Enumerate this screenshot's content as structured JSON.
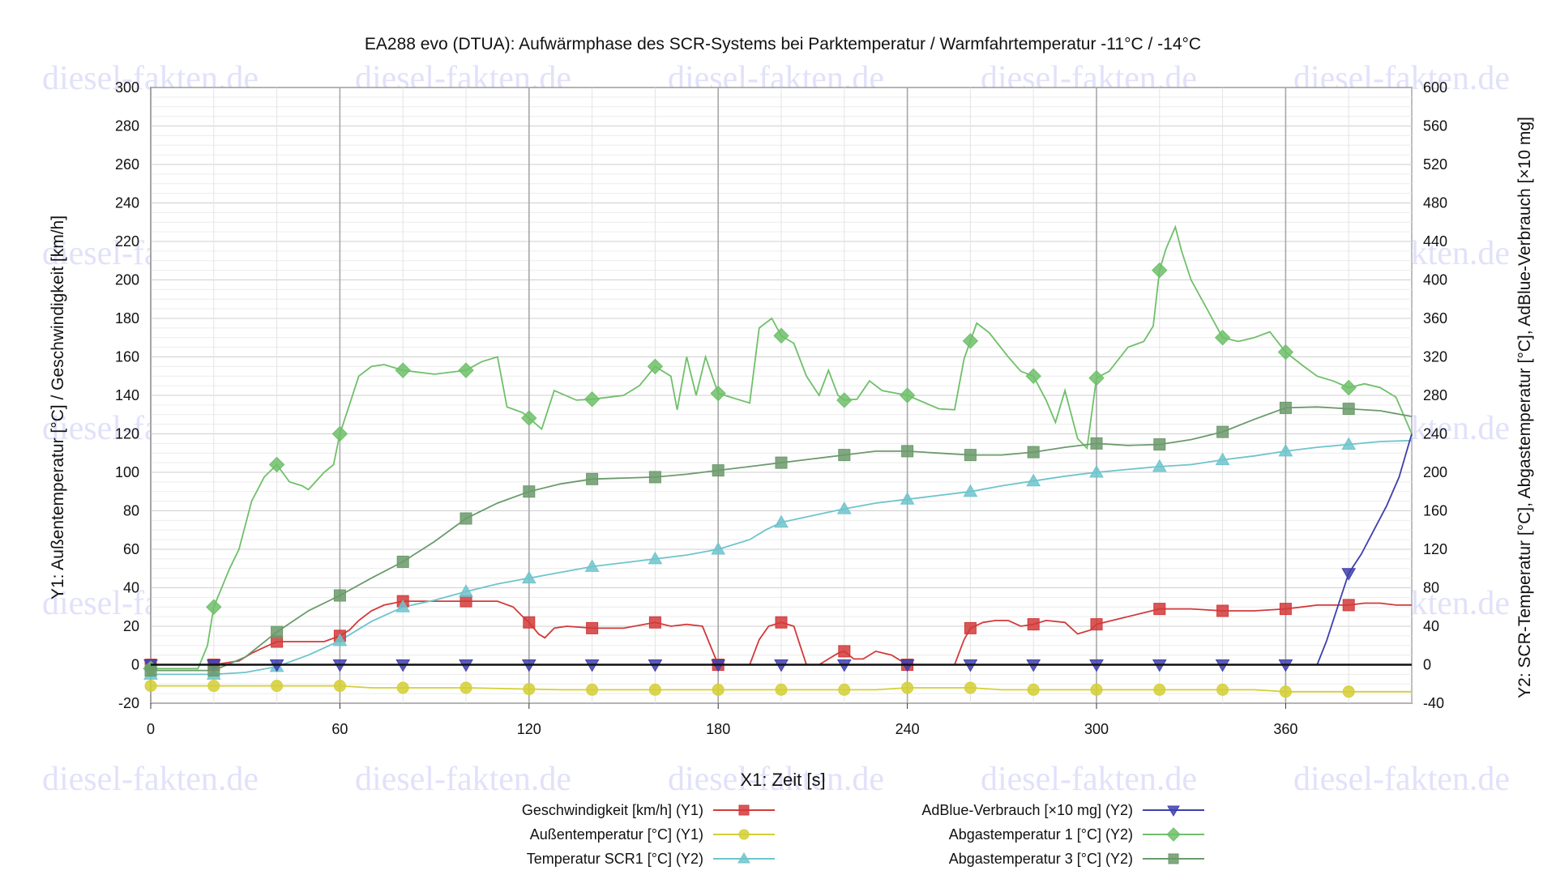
{
  "watermark": "diesel-fakten.de",
  "chart_data": {
    "type": "line",
    "title": "EA288 evo (DTUA): Aufwärmphase des SCR-Systems bei Parktemperatur / Warmfahrtemperatur -11°C / -14°C",
    "xlabel": "X1: Zeit [s]",
    "y1label": "Y1: Außentemperatur [°C] / Geschwindigkeit [km/h]",
    "y2label": "Y2: SCR-Temperatur [°C], Abgastemperatur [°C], AdBlue-Verbrauch [×10 mg]",
    "xlim": [
      0,
      400
    ],
    "y1lim": [
      -20,
      300
    ],
    "y2lim": [
      -40,
      600
    ],
    "xticks": [
      0,
      60,
      120,
      180,
      240,
      300,
      360
    ],
    "y1ticks": [
      -20,
      0,
      20,
      40,
      60,
      80,
      100,
      120,
      140,
      160,
      180,
      200,
      220,
      240,
      260,
      280,
      300
    ],
    "y2ticks": [
      -40,
      0,
      40,
      80,
      120,
      160,
      200,
      240,
      280,
      320,
      360,
      400,
      440,
      480,
      520,
      560,
      600
    ],
    "grid": true,
    "legend_position": "bottom",
    "series": [
      {
        "name": "Geschwindigkeit [km/h] (Y1)",
        "axis": "y1",
        "color": "#d23a3a",
        "marker": "square",
        "points": [
          [
            0,
            0
          ],
          [
            20,
            0
          ],
          [
            28,
            2
          ],
          [
            32,
            6
          ],
          [
            36,
            9
          ],
          [
            40,
            12
          ],
          [
            45,
            12
          ],
          [
            50,
            12
          ],
          [
            55,
            12
          ],
          [
            60,
            15
          ],
          [
            63,
            18
          ],
          [
            66,
            23
          ],
          [
            70,
            28
          ],
          [
            74,
            31
          ],
          [
            80,
            33
          ],
          [
            90,
            33
          ],
          [
            100,
            33
          ],
          [
            110,
            33
          ],
          [
            115,
            30
          ],
          [
            118,
            25
          ],
          [
            120,
            22
          ],
          [
            123,
            16
          ],
          [
            125,
            14
          ],
          [
            128,
            19
          ],
          [
            132,
            20
          ],
          [
            140,
            19
          ],
          [
            150,
            19
          ],
          [
            160,
            22
          ],
          [
            165,
            20
          ],
          [
            170,
            21
          ],
          [
            175,
            20
          ],
          [
            178,
            8
          ],
          [
            180,
            0
          ],
          [
            185,
            0
          ],
          [
            190,
            0
          ],
          [
            193,
            13
          ],
          [
            196,
            20
          ],
          [
            200,
            22
          ],
          [
            204,
            20
          ],
          [
            206,
            10
          ],
          [
            208,
            0
          ],
          [
            212,
            0
          ],
          [
            215,
            3
          ],
          [
            218,
            6
          ],
          [
            220,
            7
          ],
          [
            223,
            3
          ],
          [
            226,
            3
          ],
          [
            230,
            7
          ],
          [
            235,
            5
          ],
          [
            240,
            0
          ],
          [
            250,
            0
          ],
          [
            255,
            0
          ],
          [
            258,
            13
          ],
          [
            260,
            19
          ],
          [
            264,
            22
          ],
          [
            268,
            23
          ],
          [
            272,
            23
          ],
          [
            276,
            20
          ],
          [
            280,
            21
          ],
          [
            284,
            23
          ],
          [
            290,
            22
          ],
          [
            294,
            16
          ],
          [
            298,
            18
          ],
          [
            300,
            21
          ],
          [
            305,
            23
          ],
          [
            310,
            25
          ],
          [
            315,
            27
          ],
          [
            320,
            29
          ],
          [
            330,
            29
          ],
          [
            340,
            28
          ],
          [
            350,
            28
          ],
          [
            360,
            29
          ],
          [
            365,
            30
          ],
          [
            370,
            31
          ],
          [
            380,
            31
          ],
          [
            385,
            32
          ],
          [
            390,
            32
          ],
          [
            395,
            31
          ],
          [
            400,
            31
          ]
        ],
        "marker_x": [
          0,
          20,
          40,
          60,
          80,
          100,
          120,
          140,
          160,
          180,
          200,
          220,
          240,
          260,
          280,
          300,
          320,
          340,
          360,
          380
        ]
      },
      {
        "name": "Außentemperatur [°C] (Y1)",
        "axis": "y1",
        "color": "#d4cf35",
        "marker": "circle",
        "points": [
          [
            0,
            -11
          ],
          [
            40,
            -11
          ],
          [
            60,
            -11
          ],
          [
            70,
            -12
          ],
          [
            100,
            -12
          ],
          [
            130,
            -13
          ],
          [
            180,
            -13
          ],
          [
            230,
            -13
          ],
          [
            240,
            -12
          ],
          [
            260,
            -12
          ],
          [
            270,
            -13
          ],
          [
            350,
            -13
          ],
          [
            360,
            -14
          ],
          [
            400,
            -14
          ]
        ],
        "marker_x": [
          0,
          20,
          40,
          60,
          80,
          100,
          120,
          140,
          160,
          180,
          200,
          220,
          240,
          260,
          280,
          300,
          320,
          340,
          360,
          380
        ]
      },
      {
        "name": "Temperatur SCR1 [°C] (Y2)",
        "axis": "y2",
        "color": "#6ec4cc",
        "marker": "triangle",
        "points": [
          [
            0,
            -10
          ],
          [
            10,
            -10
          ],
          [
            20,
            -10
          ],
          [
            30,
            -8
          ],
          [
            40,
            -2
          ],
          [
            50,
            10
          ],
          [
            60,
            25
          ],
          [
            70,
            45
          ],
          [
            80,
            60
          ],
          [
            90,
            67
          ],
          [
            100,
            76
          ],
          [
            110,
            84
          ],
          [
            120,
            90
          ],
          [
            130,
            96
          ],
          [
            140,
            102
          ],
          [
            150,
            106
          ],
          [
            160,
            110
          ],
          [
            170,
            114
          ],
          [
            180,
            120
          ],
          [
            190,
            130
          ],
          [
            195,
            140
          ],
          [
            200,
            148
          ],
          [
            210,
            155
          ],
          [
            220,
            162
          ],
          [
            230,
            168
          ],
          [
            240,
            172
          ],
          [
            250,
            176
          ],
          [
            260,
            180
          ],
          [
            270,
            186
          ],
          [
            280,
            191
          ],
          [
            290,
            196
          ],
          [
            300,
            200
          ],
          [
            310,
            203
          ],
          [
            320,
            206
          ],
          [
            330,
            208
          ],
          [
            340,
            213
          ],
          [
            350,
            217
          ],
          [
            360,
            222
          ],
          [
            370,
            226
          ],
          [
            380,
            229
          ],
          [
            390,
            232
          ],
          [
            400,
            233
          ]
        ],
        "marker_x": [
          0,
          20,
          40,
          60,
          80,
          100,
          120,
          140,
          160,
          180,
          200,
          220,
          240,
          260,
          280,
          300,
          320,
          340,
          360,
          380
        ]
      },
      {
        "name": "AdBlue-Verbrauch [×10 mg] (Y2)",
        "axis": "y2",
        "color": "#3f3fae",
        "marker": "triangle-down",
        "points": [
          [
            0,
            0
          ],
          [
            370,
            0
          ],
          [
            373,
            25
          ],
          [
            376,
            55
          ],
          [
            380,
            95
          ],
          [
            384,
            115
          ],
          [
            388,
            140
          ],
          [
            392,
            165
          ],
          [
            396,
            195
          ],
          [
            400,
            240
          ]
        ],
        "marker_x": [
          0,
          20,
          40,
          60,
          80,
          100,
          120,
          140,
          160,
          180,
          200,
          220,
          240,
          260,
          280,
          300,
          320,
          340,
          360,
          380
        ]
      },
      {
        "name": "Abgastemperatur 1 [°C] (Y2)",
        "axis": "y2",
        "color": "#6fc06a",
        "marker": "diamond",
        "points": [
          [
            0,
            -4
          ],
          [
            15,
            -4
          ],
          [
            18,
            20
          ],
          [
            20,
            60
          ],
          [
            25,
            100
          ],
          [
            28,
            120
          ],
          [
            32,
            170
          ],
          [
            36,
            195
          ],
          [
            40,
            208
          ],
          [
            44,
            190
          ],
          [
            48,
            186
          ],
          [
            50,
            182
          ],
          [
            55,
            200
          ],
          [
            58,
            208
          ],
          [
            60,
            240
          ],
          [
            63,
            270
          ],
          [
            66,
            300
          ],
          [
            70,
            310
          ],
          [
            74,
            312
          ],
          [
            80,
            306
          ],
          [
            90,
            302
          ],
          [
            100,
            306
          ],
          [
            105,
            315
          ],
          [
            110,
            320
          ],
          [
            113,
            268
          ],
          [
            118,
            262
          ],
          [
            124,
            245
          ],
          [
            128,
            285
          ],
          [
            135,
            275
          ],
          [
            140,
            276
          ],
          [
            150,
            280
          ],
          [
            155,
            290
          ],
          [
            160,
            310
          ],
          [
            165,
            300
          ],
          [
            167,
            265
          ],
          [
            170,
            320
          ],
          [
            173,
            280
          ],
          [
            176,
            320
          ],
          [
            180,
            282
          ],
          [
            190,
            272
          ],
          [
            193,
            350
          ],
          [
            197,
            360
          ],
          [
            200,
            342
          ],
          [
            204,
            334
          ],
          [
            208,
            300
          ],
          [
            212,
            280
          ],
          [
            215,
            306
          ],
          [
            218,
            280
          ],
          [
            220,
            275
          ],
          [
            224,
            276
          ],
          [
            228,
            295
          ],
          [
            232,
            285
          ],
          [
            240,
            280
          ],
          [
            250,
            266
          ],
          [
            255,
            265
          ],
          [
            258,
            318
          ],
          [
            262,
            355
          ],
          [
            266,
            345
          ],
          [
            272,
            320
          ],
          [
            276,
            305
          ],
          [
            280,
            300
          ],
          [
            284,
            275
          ],
          [
            287,
            252
          ],
          [
            290,
            285
          ],
          [
            294,
            235
          ],
          [
            297,
            225
          ],
          [
            300,
            298
          ],
          [
            304,
            305
          ],
          [
            310,
            330
          ],
          [
            315,
            336
          ],
          [
            318,
            352
          ],
          [
            320,
            410
          ],
          [
            322,
            432
          ],
          [
            325,
            455
          ],
          [
            327,
            430
          ],
          [
            330,
            400
          ],
          [
            335,
            370
          ],
          [
            340,
            340
          ],
          [
            345,
            336
          ],
          [
            350,
            340
          ],
          [
            355,
            346
          ],
          [
            360,
            325
          ],
          [
            365,
            312
          ],
          [
            370,
            300
          ],
          [
            375,
            295
          ],
          [
            380,
            288
          ],
          [
            385,
            292
          ],
          [
            390,
            288
          ],
          [
            395,
            278
          ],
          [
            400,
            240
          ]
        ],
        "marker_x": [
          0,
          20,
          40,
          60,
          80,
          100,
          120,
          140,
          160,
          180,
          200,
          220,
          240,
          260,
          280,
          300,
          320,
          340,
          360,
          380
        ]
      },
      {
        "name": "Abgastemperatur 3 [°C] (Y2)",
        "axis": "y2",
        "color": "#6b9a6b",
        "marker": "square",
        "points": [
          [
            0,
            -6
          ],
          [
            20,
            -6
          ],
          [
            30,
            8
          ],
          [
            40,
            34
          ],
          [
            50,
            56
          ],
          [
            60,
            72
          ],
          [
            70,
            90
          ],
          [
            80,
            107
          ],
          [
            90,
            128
          ],
          [
            100,
            152
          ],
          [
            110,
            168
          ],
          [
            120,
            180
          ],
          [
            130,
            188
          ],
          [
            140,
            193
          ],
          [
            150,
            194
          ],
          [
            160,
            195
          ],
          [
            170,
            198
          ],
          [
            180,
            202
          ],
          [
            190,
            206
          ],
          [
            200,
            210
          ],
          [
            210,
            214
          ],
          [
            220,
            218
          ],
          [
            230,
            222
          ],
          [
            240,
            222
          ],
          [
            250,
            220
          ],
          [
            260,
            218
          ],
          [
            270,
            218
          ],
          [
            280,
            221
          ],
          [
            290,
            226
          ],
          [
            300,
            230
          ],
          [
            310,
            228
          ],
          [
            320,
            229
          ],
          [
            330,
            234
          ],
          [
            340,
            242
          ],
          [
            350,
            255
          ],
          [
            360,
            267
          ],
          [
            370,
            268
          ],
          [
            380,
            266
          ],
          [
            390,
            264
          ],
          [
            400,
            258
          ]
        ],
        "marker_x": [
          0,
          20,
          40,
          60,
          80,
          100,
          120,
          140,
          160,
          180,
          200,
          220,
          240,
          260,
          280,
          300,
          320,
          340,
          360,
          380
        ]
      }
    ]
  }
}
